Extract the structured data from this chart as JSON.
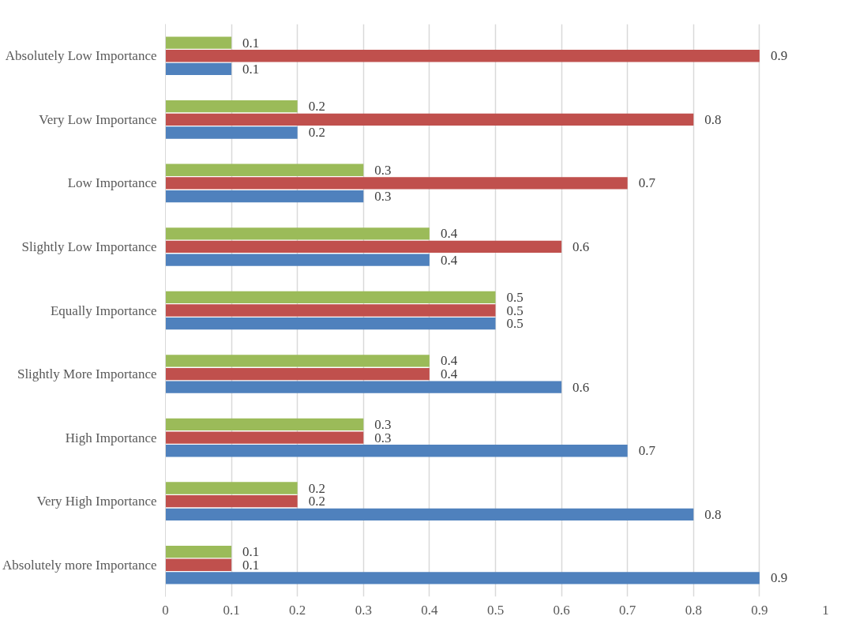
{
  "chart_data": {
    "type": "bar",
    "orientation": "horizontal",
    "categories": [
      "Absolutely Low Importance",
      "Very Low Importance",
      "Low Importance",
      "Slightly Low Importance",
      "Equally Importance",
      "Slightly More Importance",
      "High Importance",
      "Very High Importance",
      "Absolutely more Importance"
    ],
    "series": [
      {
        "color": "#4f81bd",
        "values": [
          0.1,
          0.2,
          0.3,
          0.4,
          0.5,
          0.6,
          0.7,
          0.8,
          0.9
        ]
      },
      {
        "color": "#c0504d",
        "values": [
          0.9,
          0.8,
          0.7,
          0.6,
          0.5,
          0.4,
          0.3,
          0.2,
          0.1
        ]
      },
      {
        "color": "#9bbb59",
        "values": [
          0.1,
          0.2,
          0.3,
          0.4,
          0.5,
          0.4,
          0.3,
          0.2,
          0.1
        ]
      }
    ],
    "xlim": [
      0,
      1
    ],
    "xticks": [
      0,
      0.1,
      0.2,
      0.3,
      0.4,
      0.5,
      0.6,
      0.7,
      0.8,
      0.9,
      1
    ],
    "grid": "x",
    "data_labels": true
  }
}
